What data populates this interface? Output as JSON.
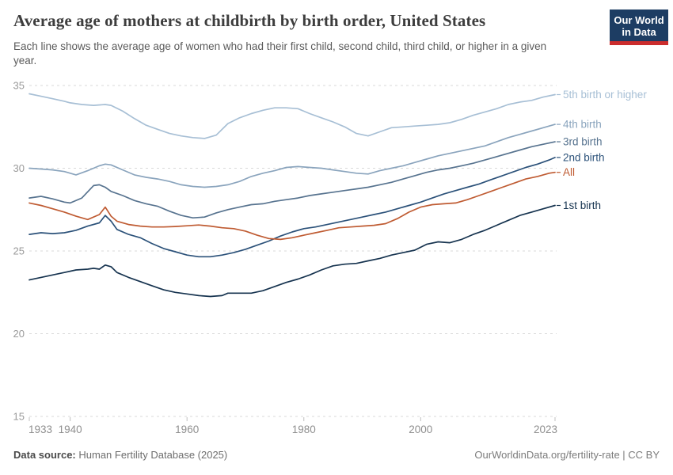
{
  "header": {
    "title": "Average age of mothers at childbirth by birth order, United States",
    "subtitle": "Each line shows the average age of women who had their first child, second child, third child, or higher in a given year.",
    "logo": {
      "line1": "Our World",
      "line2": "in Data",
      "bg_color": "#1d3d63",
      "accent_color": "#cb2d2d"
    }
  },
  "chart_data": {
    "type": "line",
    "title": "Average age of mothers at childbirth by birth order, United States",
    "xlabel": "",
    "ylabel": "",
    "xlim": [
      1933,
      2023
    ],
    "ylim": [
      15,
      35
    ],
    "x_ticks": [
      1933,
      1940,
      1960,
      1980,
      2000,
      2023
    ],
    "y_ticks": [
      15,
      20,
      25,
      30,
      35
    ],
    "grid": "horizontal-dashed",
    "legend_position": "right",
    "series": [
      {
        "name": "5th birth or higher",
        "color": "#a7bfd5",
        "points": [
          [
            1933,
            34.5
          ],
          [
            1935,
            34.35
          ],
          [
            1937,
            34.2
          ],
          [
            1939,
            34.05
          ],
          [
            1940,
            33.95
          ],
          [
            1942,
            33.85
          ],
          [
            1944,
            33.8
          ],
          [
            1946,
            33.85
          ],
          [
            1947,
            33.8
          ],
          [
            1949,
            33.45
          ],
          [
            1951,
            33.0
          ],
          [
            1953,
            32.6
          ],
          [
            1955,
            32.35
          ],
          [
            1957,
            32.1
          ],
          [
            1959,
            31.95
          ],
          [
            1961,
            31.85
          ],
          [
            1963,
            31.8
          ],
          [
            1965,
            32.0
          ],
          [
            1967,
            32.7
          ],
          [
            1969,
            33.05
          ],
          [
            1971,
            33.3
          ],
          [
            1973,
            33.5
          ],
          [
            1975,
            33.65
          ],
          [
            1977,
            33.65
          ],
          [
            1979,
            33.6
          ],
          [
            1981,
            33.3
          ],
          [
            1983,
            33.05
          ],
          [
            1985,
            32.8
          ],
          [
            1987,
            32.5
          ],
          [
            1989,
            32.1
          ],
          [
            1991,
            31.95
          ],
          [
            1993,
            32.2
          ],
          [
            1995,
            32.45
          ],
          [
            1997,
            32.5
          ],
          [
            1999,
            32.55
          ],
          [
            2001,
            32.6
          ],
          [
            2003,
            32.65
          ],
          [
            2005,
            32.75
          ],
          [
            2007,
            32.95
          ],
          [
            2009,
            33.2
          ],
          [
            2011,
            33.4
          ],
          [
            2013,
            33.6
          ],
          [
            2015,
            33.85
          ],
          [
            2017,
            34.0
          ],
          [
            2019,
            34.1
          ],
          [
            2021,
            34.3
          ],
          [
            2023,
            34.45
          ]
        ]
      },
      {
        "name": "4th birth",
        "color": "#8aa4bd",
        "points": [
          [
            1933,
            30.0
          ],
          [
            1935,
            29.95
          ],
          [
            1937,
            29.9
          ],
          [
            1939,
            29.8
          ],
          [
            1941,
            29.6
          ],
          [
            1943,
            29.85
          ],
          [
            1945,
            30.15
          ],
          [
            1946,
            30.25
          ],
          [
            1947,
            30.2
          ],
          [
            1949,
            29.9
          ],
          [
            1951,
            29.6
          ],
          [
            1953,
            29.45
          ],
          [
            1955,
            29.35
          ],
          [
            1957,
            29.2
          ],
          [
            1959,
            29.0
          ],
          [
            1961,
            28.9
          ],
          [
            1963,
            28.85
          ],
          [
            1965,
            28.9
          ],
          [
            1967,
            29.0
          ],
          [
            1969,
            29.2
          ],
          [
            1971,
            29.5
          ],
          [
            1973,
            29.7
          ],
          [
            1975,
            29.85
          ],
          [
            1977,
            30.05
          ],
          [
            1979,
            30.1
          ],
          [
            1981,
            30.05
          ],
          [
            1983,
            30.0
          ],
          [
            1985,
            29.9
          ],
          [
            1987,
            29.8
          ],
          [
            1989,
            29.7
          ],
          [
            1991,
            29.65
          ],
          [
            1993,
            29.85
          ],
          [
            1995,
            30.0
          ],
          [
            1997,
            30.15
          ],
          [
            1999,
            30.35
          ],
          [
            2001,
            30.55
          ],
          [
            2003,
            30.75
          ],
          [
            2005,
            30.9
          ],
          [
            2007,
            31.05
          ],
          [
            2009,
            31.2
          ],
          [
            2011,
            31.35
          ],
          [
            2013,
            31.6
          ],
          [
            2015,
            31.85
          ],
          [
            2017,
            32.05
          ],
          [
            2019,
            32.25
          ],
          [
            2021,
            32.45
          ],
          [
            2023,
            32.65
          ]
        ]
      },
      {
        "name": "3rd birth",
        "color": "#57738f",
        "points": [
          [
            1933,
            28.2
          ],
          [
            1935,
            28.3
          ],
          [
            1937,
            28.15
          ],
          [
            1939,
            27.95
          ],
          [
            1940,
            27.9
          ],
          [
            1942,
            28.2
          ],
          [
            1944,
            28.95
          ],
          [
            1945,
            29.0
          ],
          [
            1946,
            28.85
          ],
          [
            1947,
            28.6
          ],
          [
            1949,
            28.35
          ],
          [
            1951,
            28.05
          ],
          [
            1953,
            27.85
          ],
          [
            1955,
            27.7
          ],
          [
            1957,
            27.4
          ],
          [
            1959,
            27.15
          ],
          [
            1961,
            27.0
          ],
          [
            1963,
            27.05
          ],
          [
            1965,
            27.3
          ],
          [
            1967,
            27.5
          ],
          [
            1969,
            27.65
          ],
          [
            1971,
            27.8
          ],
          [
            1973,
            27.85
          ],
          [
            1975,
            28.0
          ],
          [
            1977,
            28.1
          ],
          [
            1979,
            28.2
          ],
          [
            1981,
            28.35
          ],
          [
            1983,
            28.45
          ],
          [
            1985,
            28.55
          ],
          [
            1987,
            28.65
          ],
          [
            1989,
            28.75
          ],
          [
            1991,
            28.85
          ],
          [
            1993,
            29.0
          ],
          [
            1995,
            29.15
          ],
          [
            1997,
            29.35
          ],
          [
            1999,
            29.55
          ],
          [
            2001,
            29.75
          ],
          [
            2003,
            29.9
          ],
          [
            2005,
            30.0
          ],
          [
            2007,
            30.15
          ],
          [
            2009,
            30.3
          ],
          [
            2011,
            30.5
          ],
          [
            2013,
            30.7
          ],
          [
            2015,
            30.9
          ],
          [
            2017,
            31.1
          ],
          [
            2019,
            31.3
          ],
          [
            2021,
            31.45
          ],
          [
            2023,
            31.6
          ]
        ]
      },
      {
        "name": "2nd birth",
        "color": "#2b5179",
        "points": [
          [
            1933,
            26.0
          ],
          [
            1935,
            26.1
          ],
          [
            1937,
            26.05
          ],
          [
            1939,
            26.1
          ],
          [
            1941,
            26.25
          ],
          [
            1943,
            26.5
          ],
          [
            1945,
            26.7
          ],
          [
            1946,
            27.15
          ],
          [
            1947,
            26.8
          ],
          [
            1948,
            26.3
          ],
          [
            1950,
            26.0
          ],
          [
            1952,
            25.8
          ],
          [
            1954,
            25.45
          ],
          [
            1956,
            25.15
          ],
          [
            1958,
            24.95
          ],
          [
            1960,
            24.75
          ],
          [
            1962,
            24.65
          ],
          [
            1964,
            24.65
          ],
          [
            1966,
            24.75
          ],
          [
            1968,
            24.9
          ],
          [
            1970,
            25.1
          ],
          [
            1972,
            25.35
          ],
          [
            1974,
            25.6
          ],
          [
            1976,
            25.9
          ],
          [
            1978,
            26.15
          ],
          [
            1980,
            26.35
          ],
          [
            1982,
            26.45
          ],
          [
            1984,
            26.6
          ],
          [
            1986,
            26.75
          ],
          [
            1988,
            26.9
          ],
          [
            1990,
            27.05
          ],
          [
            1992,
            27.2
          ],
          [
            1994,
            27.35
          ],
          [
            1996,
            27.55
          ],
          [
            1998,
            27.75
          ],
          [
            2000,
            27.95
          ],
          [
            2002,
            28.2
          ],
          [
            2004,
            28.45
          ],
          [
            2006,
            28.65
          ],
          [
            2008,
            28.85
          ],
          [
            2010,
            29.05
          ],
          [
            2012,
            29.3
          ],
          [
            2014,
            29.55
          ],
          [
            2016,
            29.8
          ],
          [
            2018,
            30.05
          ],
          [
            2020,
            30.25
          ],
          [
            2022,
            30.5
          ],
          [
            2023,
            30.65
          ]
        ]
      },
      {
        "name": "All",
        "color": "#bf5b32",
        "points": [
          [
            1933,
            27.9
          ],
          [
            1935,
            27.75
          ],
          [
            1937,
            27.55
          ],
          [
            1939,
            27.35
          ],
          [
            1941,
            27.1
          ],
          [
            1943,
            26.9
          ],
          [
            1945,
            27.2
          ],
          [
            1946,
            27.65
          ],
          [
            1947,
            27.1
          ],
          [
            1948,
            26.8
          ],
          [
            1950,
            26.6
          ],
          [
            1952,
            26.5
          ],
          [
            1954,
            26.45
          ],
          [
            1956,
            26.45
          ],
          [
            1958,
            26.48
          ],
          [
            1960,
            26.52
          ],
          [
            1962,
            26.57
          ],
          [
            1964,
            26.5
          ],
          [
            1966,
            26.4
          ],
          [
            1968,
            26.35
          ],
          [
            1970,
            26.2
          ],
          [
            1972,
            25.95
          ],
          [
            1974,
            25.75
          ],
          [
            1976,
            25.7
          ],
          [
            1978,
            25.8
          ],
          [
            1980,
            25.95
          ],
          [
            1982,
            26.1
          ],
          [
            1984,
            26.25
          ],
          [
            1986,
            26.4
          ],
          [
            1988,
            26.45
          ],
          [
            1990,
            26.5
          ],
          [
            1992,
            26.55
          ],
          [
            1994,
            26.65
          ],
          [
            1996,
            26.95
          ],
          [
            1998,
            27.35
          ],
          [
            2000,
            27.65
          ],
          [
            2002,
            27.8
          ],
          [
            2004,
            27.85
          ],
          [
            2006,
            27.9
          ],
          [
            2008,
            28.1
          ],
          [
            2010,
            28.35
          ],
          [
            2012,
            28.6
          ],
          [
            2014,
            28.85
          ],
          [
            2016,
            29.1
          ],
          [
            2018,
            29.35
          ],
          [
            2020,
            29.5
          ],
          [
            2022,
            29.7
          ],
          [
            2023,
            29.75
          ]
        ]
      },
      {
        "name": "1st birth",
        "color": "#16334f",
        "points": [
          [
            1933,
            23.25
          ],
          [
            1935,
            23.4
          ],
          [
            1937,
            23.55
          ],
          [
            1939,
            23.7
          ],
          [
            1941,
            23.85
          ],
          [
            1943,
            23.9
          ],
          [
            1944,
            23.95
          ],
          [
            1945,
            23.9
          ],
          [
            1946,
            24.15
          ],
          [
            1947,
            24.05
          ],
          [
            1948,
            23.7
          ],
          [
            1950,
            23.4
          ],
          [
            1952,
            23.15
          ],
          [
            1954,
            22.9
          ],
          [
            1956,
            22.65
          ],
          [
            1958,
            22.5
          ],
          [
            1960,
            22.4
          ],
          [
            1962,
            22.3
          ],
          [
            1964,
            22.25
          ],
          [
            1966,
            22.3
          ],
          [
            1967,
            22.45
          ],
          [
            1969,
            22.45
          ],
          [
            1971,
            22.45
          ],
          [
            1973,
            22.6
          ],
          [
            1975,
            22.85
          ],
          [
            1977,
            23.1
          ],
          [
            1979,
            23.3
          ],
          [
            1981,
            23.55
          ],
          [
            1983,
            23.85
          ],
          [
            1985,
            24.1
          ],
          [
            1987,
            24.2
          ],
          [
            1989,
            24.25
          ],
          [
            1991,
            24.4
          ],
          [
            1993,
            24.55
          ],
          [
            1995,
            24.75
          ],
          [
            1997,
            24.9
          ],
          [
            1999,
            25.05
          ],
          [
            2001,
            25.4
          ],
          [
            2003,
            25.55
          ],
          [
            2005,
            25.5
          ],
          [
            2007,
            25.7
          ],
          [
            2009,
            26.0
          ],
          [
            2011,
            26.25
          ],
          [
            2013,
            26.55
          ],
          [
            2015,
            26.85
          ],
          [
            2017,
            27.15
          ],
          [
            2019,
            27.35
          ],
          [
            2021,
            27.55
          ],
          [
            2023,
            27.75
          ]
        ]
      }
    ],
    "style": {
      "gridline_color": "#d9d9d9",
      "tick_label_color": "#9a9a9a",
      "x_tick_label_color": "#8f8f8f",
      "tick_mark_color": "#c0c0c0"
    }
  },
  "footer": {
    "source_label": "Data source:",
    "source_value": "Human Fertility Database (2025)",
    "attribution": "OurWorldinData.org/fertility-rate | CC BY"
  }
}
